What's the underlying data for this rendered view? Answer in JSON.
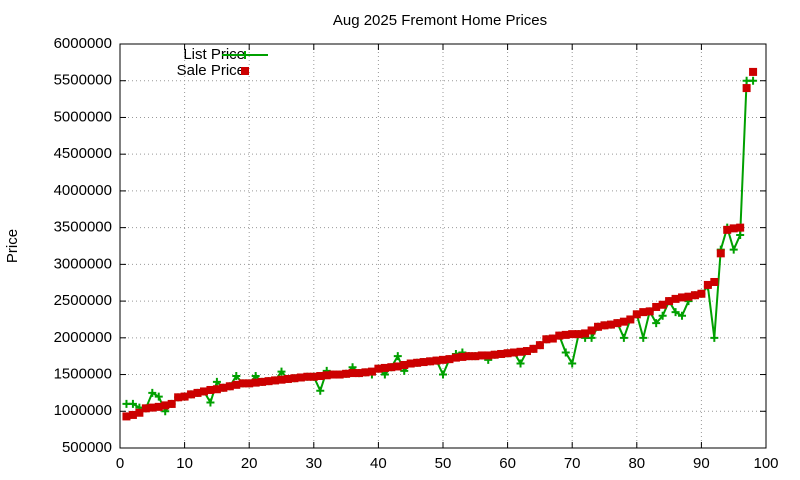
{
  "chart_data": {
    "type": "line",
    "title": "Aug 2025 Fremont Home Prices",
    "y_label": "Price",
    "x": [
      1,
      2,
      3,
      4,
      5,
      6,
      7,
      8,
      9,
      10,
      11,
      12,
      13,
      14,
      15,
      16,
      17,
      18,
      19,
      20,
      21,
      22,
      23,
      24,
      25,
      26,
      27,
      28,
      29,
      30,
      31,
      32,
      33,
      34,
      35,
      36,
      37,
      38,
      39,
      40,
      41,
      42,
      43,
      44,
      45,
      46,
      47,
      48,
      49,
      50,
      51,
      52,
      53,
      54,
      55,
      56,
      57,
      58,
      59,
      60,
      61,
      62,
      63,
      64,
      65,
      66,
      67,
      68,
      69,
      70,
      71,
      72,
      73,
      74,
      75,
      76,
      77,
      78,
      79,
      80,
      81,
      82,
      83,
      84,
      85,
      86,
      87,
      88,
      89,
      90,
      91,
      92,
      93,
      94,
      95,
      96,
      97,
      98
    ],
    "series": [
      {
        "name": "List Price",
        "color": "#00a000",
        "style": "linespoints",
        "values": [
          1100000,
          1100000,
          1050000,
          1040000,
          1250000,
          1200000,
          1000000,
          1100000,
          1190000,
          1200000,
          1230000,
          1250000,
          1270000,
          1120000,
          1400000,
          1320000,
          1340000,
          1480000,
          1380000,
          1380000,
          1480000,
          1400000,
          1410000,
          1420000,
          1540000,
          1440000,
          1450000,
          1460000,
          1470000,
          1470000,
          1280000,
          1550000,
          1500000,
          1500000,
          1510000,
          1600000,
          1520000,
          1530000,
          1500000,
          1580000,
          1500000,
          1600000,
          1750000,
          1550000,
          1650000,
          1660000,
          1670000,
          1680000,
          1690000,
          1500000,
          1710000,
          1780000,
          1800000,
          1750000,
          1750000,
          1760000,
          1700000,
          1770000,
          1780000,
          1790000,
          1800000,
          1650000,
          1820000,
          1850000,
          1900000,
          1980000,
          1990000,
          2030000,
          1800000,
          1650000,
          2050000,
          2000000,
          2000000,
          2150000,
          2170000,
          2180000,
          2200000,
          2000000,
          2250000,
          2320000,
          2000000,
          2360000,
          2200000,
          2300000,
          2500000,
          2350000,
          2300000,
          2500000,
          2580000,
          2600000,
          2700000,
          2000000,
          3200000,
          3500000,
          3200000,
          3400000,
          5500000,
          5500000
        ]
      },
      {
        "name": "Sale Price",
        "color": "#cc0000",
        "style": "points",
        "values": [
          930000,
          950000,
          980000,
          1040000,
          1050000,
          1060000,
          1080000,
          1100000,
          1190000,
          1200000,
          1230000,
          1250000,
          1270000,
          1290000,
          1300000,
          1320000,
          1340000,
          1360000,
          1380000,
          1380000,
          1390000,
          1400000,
          1410000,
          1420000,
          1430000,
          1440000,
          1450000,
          1460000,
          1470000,
          1470000,
          1480000,
          1490000,
          1500000,
          1500000,
          1510000,
          1520000,
          1520000,
          1530000,
          1540000,
          1580000,
          1590000,
          1600000,
          1610000,
          1630000,
          1650000,
          1660000,
          1670000,
          1680000,
          1690000,
          1700000,
          1710000,
          1730000,
          1740000,
          1750000,
          1750000,
          1760000,
          1760000,
          1770000,
          1780000,
          1790000,
          1800000,
          1810000,
          1820000,
          1850000,
          1900000,
          1980000,
          1990000,
          2030000,
          2040000,
          2050000,
          2050000,
          2060000,
          2100000,
          2150000,
          2170000,
          2180000,
          2200000,
          2220000,
          2250000,
          2320000,
          2350000,
          2360000,
          2420000,
          2450000,
          2500000,
          2530000,
          2550000,
          2560000,
          2580000,
          2600000,
          2720000,
          2760000,
          3150000,
          3470000,
          3490000,
          3500000,
          5400000,
          5620000
        ]
      }
    ],
    "xlim": [
      0,
      100
    ],
    "xticks": [
      0,
      10,
      20,
      30,
      40,
      50,
      60,
      70,
      80,
      90,
      100
    ],
    "ylim": [
      500000,
      6000000
    ],
    "yticks": [
      500000,
      1000000,
      1500000,
      2000000,
      2500000,
      3000000,
      3500000,
      4000000,
      4500000,
      5000000,
      5500000,
      6000000
    ],
    "grid": true,
    "legend": "top-left"
  }
}
